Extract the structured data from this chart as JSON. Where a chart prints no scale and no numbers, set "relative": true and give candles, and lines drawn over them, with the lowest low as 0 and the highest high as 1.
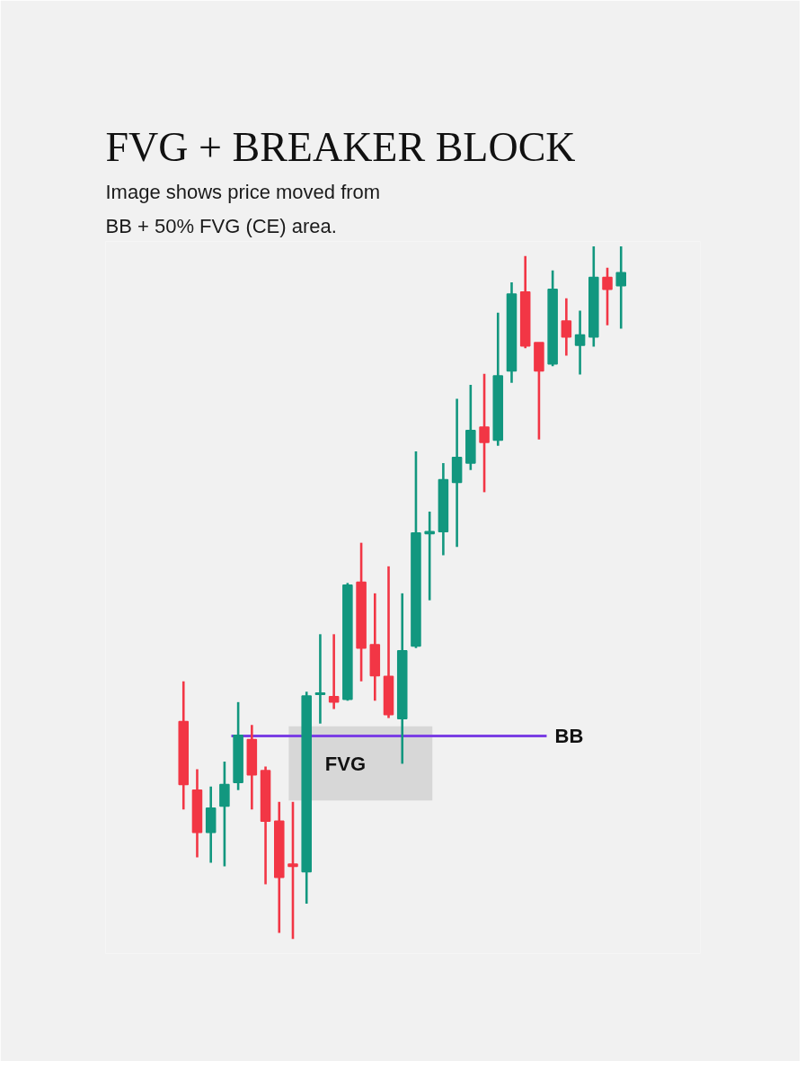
{
  "chart_data": {
    "type": "candlestick",
    "title": "FVG + BREAKER BLOCK",
    "subtitle": "Image shows price moved from BB + 50% FVG (CE) area.",
    "categories": [
      null,
      null,
      null,
      null,
      null,
      null,
      null,
      null,
      null,
      null,
      null,
      null,
      null,
      null,
      null,
      null,
      null,
      null,
      null,
      null,
      null,
      null,
      null,
      null,
      null,
      null,
      null,
      null,
      null,
      null,
      null,
      null,
      null
    ],
    "relative": true,
    "ohlc": [
      [
        0.314,
        0.372,
        0.187,
        0.223
      ],
      [
        0.215,
        0.245,
        0.118,
        0.154
      ],
      [
        0.154,
        0.22,
        0.11,
        0.189
      ],
      [
        0.192,
        0.256,
        0.105,
        0.223
      ],
      [
        0.226,
        0.342,
        0.215,
        0.294
      ],
      [
        0.288,
        0.309,
        0.187,
        0.237
      ],
      [
        0.243,
        0.249,
        0.079,
        0.17
      ],
      [
        0.17,
        0.198,
        0.009,
        0.089
      ],
      [
        0.108,
        0.198,
        0.0,
        0.105
      ],
      [
        0.097,
        0.357,
        0.051,
        0.351
      ],
      [
        0.353,
        0.44,
        0.311,
        0.355
      ],
      [
        0.35,
        0.44,
        0.332,
        0.342
      ],
      [
        0.346,
        0.514,
        0.344,
        0.511
      ],
      [
        0.515,
        0.572,
        0.372,
        0.42
      ],
      [
        0.425,
        0.499,
        0.344,
        0.38
      ],
      [
        0.379,
        0.538,
        0.319,
        0.324
      ],
      [
        0.318,
        0.499,
        0.253,
        0.416
      ],
      [
        0.423,
        0.704,
        0.42,
        0.586
      ],
      [
        0.585,
        0.617,
        0.489,
        0.588
      ],
      [
        0.588,
        0.687,
        0.554,
        0.663
      ],
      [
        0.659,
        0.78,
        0.566,
        0.695
      ],
      [
        0.687,
        0.8,
        0.677,
        0.734
      ],
      [
        0.739,
        0.816,
        0.645,
        0.717
      ],
      [
        0.72,
        0.904,
        0.712,
        0.813
      ],
      [
        0.82,
        0.948,
        0.803,
        0.931
      ],
      [
        0.934,
        0.986,
        0.853,
        0.856
      ],
      [
        0.861,
        0.861,
        0.721,
        0.82
      ],
      [
        0.83,
        0.965,
        0.827,
        0.938
      ],
      [
        0.892,
        0.925,
        0.842,
        0.869
      ],
      [
        0.857,
        0.907,
        0.815,
        0.872
      ],
      [
        0.869,
        1.0,
        0.855,
        0.955
      ],
      [
        0.955,
        0.969,
        0.886,
        0.938
      ],
      [
        0.943,
        1.0,
        0.881,
        0.962
      ]
    ],
    "colors": [
      "#f23645",
      "#f23645",
      "#12977f",
      "#12977f",
      "#12977f",
      "#f23645",
      "#f23645",
      "#f23645",
      "#f23645",
      "#12977f",
      "#12977f",
      "#f23645",
      "#12977f",
      "#f23645",
      "#f23645",
      "#f23645",
      "#12977f",
      "#12977f",
      "#12977f",
      "#12977f",
      "#12977f",
      "#12977f",
      "#f23645",
      "#12977f",
      "#12977f",
      "#f23645",
      "#f23645",
      "#12977f",
      "#f23645",
      "#12977f",
      "#12977f",
      "#f23645",
      "#12977f"
    ],
    "ref_lines": [
      {
        "axis": "y",
        "value": 0.293,
        "label": "BB",
        "color": "#7b3fe4"
      }
    ],
    "bands": [
      {
        "axis": "y",
        "from": 0.2,
        "to": 0.307,
        "label": "FVG",
        "color": "#d4d4d4"
      }
    ]
  }
}
